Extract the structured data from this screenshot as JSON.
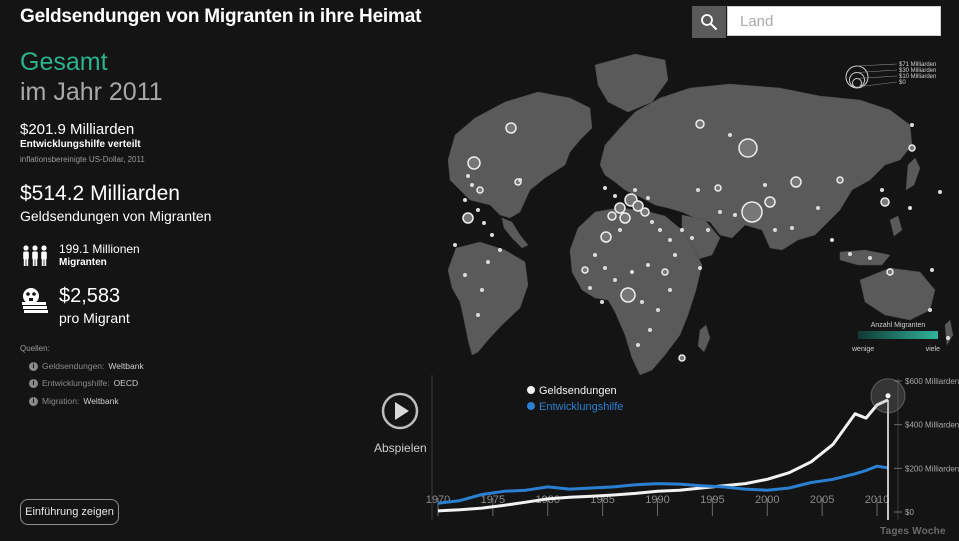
{
  "header": {
    "title": "Geldsendungen von Migranten in ihre Heimat",
    "search_placeholder": "Land"
  },
  "summary": {
    "heading": "Gesamt",
    "year_label": "im Jahr 2011",
    "aid": {
      "amount": "$201.9 Milliarden",
      "label": "Entwicklungshilfe verteilt",
      "note": "inflationsbereinigte US-Dollar, 2011"
    },
    "remittances": {
      "amount": "$514.2 Milliarden",
      "label": "Geldsendungen von Migranten"
    },
    "migrants": {
      "count": "199.1 Millionen",
      "label": "Migranten",
      "icon": "people-icon"
    },
    "per_migrant": {
      "amount": "$2,583",
      "label": "pro Migrant",
      "icon": "money-icon"
    }
  },
  "sources": {
    "title": "Quellen:",
    "items": [
      {
        "label": "Geldsendungen:",
        "value": "Weltbank"
      },
      {
        "label": "Entwicklungshilfe:",
        "value": "OECD"
      },
      {
        "label": "Migration:",
        "value": "Weltbank"
      }
    ]
  },
  "controls": {
    "intro_button": "Einführung zeigen",
    "play_label": "Abspielen"
  },
  "map": {
    "size_legend": [
      "$71 Milliarden",
      "$30 Milliarden",
      "$10 Milliarden",
      "$0"
    ],
    "color_legend": {
      "title": "Anzahl Migranten",
      "low": "wenige",
      "high": "viele",
      "color_low": "#0f3a34",
      "color_high": "#30b39a"
    },
    "land_color": "#5a5a5a"
  },
  "chart_data": {
    "type": "line",
    "x": [
      1970,
      1972,
      1974,
      1976,
      1978,
      1980,
      1982,
      1984,
      1986,
      1988,
      1990,
      1992,
      1994,
      1996,
      1998,
      2000,
      2002,
      2004,
      2006,
      2008,
      2009,
      2010,
      2011
    ],
    "series": [
      {
        "name": "Geldsendungen",
        "color": "#f2f2f2",
        "values": [
          5,
          10,
          18,
          30,
          45,
          60,
          68,
          72,
          78,
          85,
          95,
          100,
          110,
          120,
          130,
          150,
          180,
          230,
          310,
          450,
          430,
          490,
          514
        ]
      },
      {
        "name": "Entwicklungshilfe",
        "color": "#2a7fd1",
        "values": [
          40,
          52,
          80,
          95,
          100,
          115,
          105,
          110,
          115,
          125,
          130,
          128,
          120,
          115,
          105,
          100,
          110,
          135,
          150,
          175,
          190,
          210,
          202
        ]
      }
    ],
    "x_ticks": [
      "1970",
      "1975",
      "1980",
      "1985",
      "1990",
      "1995",
      "2000",
      "2005",
      "2010"
    ],
    "y_ticks": [
      "$600 Milliarden",
      "$400 Milliarden",
      "$200 Milliarden",
      "$0"
    ],
    "ylim": [
      0,
      600
    ],
    "xlim": [
      1970,
      2011
    ],
    "highlight_year": 2011
  },
  "footer": {
    "logo": "Tages Woche"
  }
}
